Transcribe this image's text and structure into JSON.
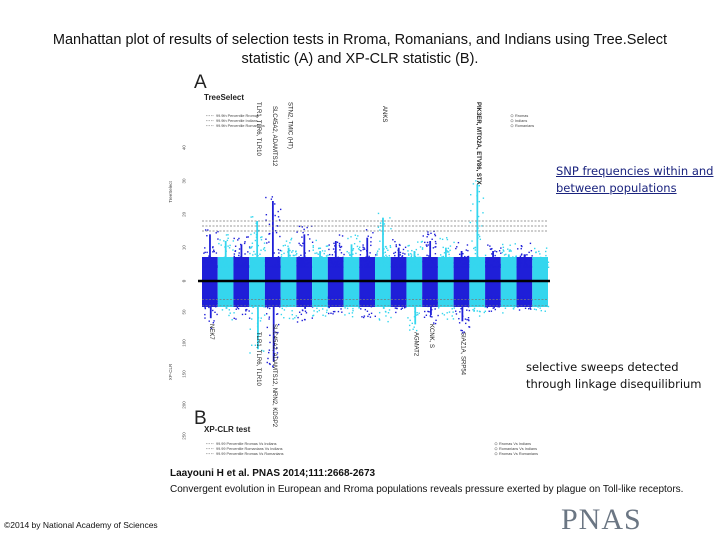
{
  "slide": {
    "title": "Manhattan plot of results of selection tests in Rroma, Romanians, and Indians using Tree.Select statistic (A) and XP-CLR statistic (B).",
    "annotation_top": "SNP frequencies within and between populations",
    "annotation_bottom": "selective sweeps detected through linkage disequilibrium",
    "citation": "Laayouni H et al. PNAS 2014;111:2668-2673",
    "description": "Convergent evolution in European and Rroma populations reveals pressure exerted by plague on Toll-like receptors.",
    "copyright": "©2014 by National Academy of Sciences",
    "publisher_logo": "PNAS"
  },
  "colors": {
    "dark_blue": "#1f1fd8",
    "cyan": "#35d6ee",
    "axis_black": "#000000",
    "threshold_line": "#7a7a7a",
    "logo_gray": "#6b7683",
    "link_blue": "#1a237e"
  },
  "chart_data": [
    {
      "type": "scatter",
      "panel_label": "A",
      "title": "TreeSelect",
      "ylabel": "TreeSelect",
      "orientation": "upward",
      "legend": {
        "placement_left": "top-left",
        "entries_left": [
          "99.9th Percentile Rromas",
          "99.9th Percentile Indians",
          "99.9th Percentile Romanians"
        ],
        "placement_right": "top-right",
        "entries_right": [
          "Rromas",
          "Indians",
          "Romanians"
        ]
      },
      "yticks": [
        "0",
        "10",
        "20",
        "30",
        "40"
      ],
      "ylim": [
        0,
        45
      ],
      "threshold_values": [
        15,
        16.5,
        18
      ],
      "gene_labels": [
        "TLR1, TLR6, TLR10",
        "SLC45A2, ADAMTS12",
        "STN2, TMIC (HT)",
        "ANKS",
        "PIK3ER, MTO2A, ETV86, STX"
      ],
      "gene_label_chromosomes": [
        4,
        5,
        6,
        12,
        18
      ],
      "chromosome_peaks": [
        14,
        12,
        11,
        18,
        24,
        10,
        14,
        9,
        12,
        11,
        13,
        19,
        10,
        9,
        12,
        10,
        9,
        29,
        9,
        8,
        8,
        7
      ]
    },
    {
      "type": "scatter",
      "panel_label": "B",
      "title": "XP-CLR test",
      "ylabel": "XP-CLR",
      "orientation": "downward",
      "legend": {
        "placement_left": "bottom-left",
        "entries_left": [
          "99.99 Percentile Rromas Vs Indians",
          "99.99 Percentile Romanians Vs Indians",
          "99.99 Percentile Rromas Vs Romanians"
        ],
        "placement_right": "bottom-right",
        "entries_right": [
          "Rromas Vs Indians",
          "Romanians Vs Indians",
          "Rromas Vs Romanians"
        ]
      },
      "yticks": [
        "0",
        "50",
        "100",
        "150",
        "200",
        "250"
      ],
      "ylim": [
        0,
        250
      ],
      "threshold_values": [
        30,
        40
      ],
      "gene_labels": [
        "NEK7",
        "TLR1, TLR6, TLR10",
        "SLC45A2, ADAMTS12, NRN2, KDSP2",
        "AGMAT2",
        "KCNK, S",
        "SIAZ1A, SRP54"
      ],
      "gene_label_chromosomes": [
        1,
        4,
        5,
        14,
        15,
        17
      ],
      "chromosome_peaks": [
        60,
        45,
        40,
        110,
        130,
        40,
        45,
        40,
        30,
        35,
        40,
        45,
        30,
        70,
        55,
        40,
        65,
        35,
        30,
        30,
        25,
        25
      ]
    }
  ]
}
